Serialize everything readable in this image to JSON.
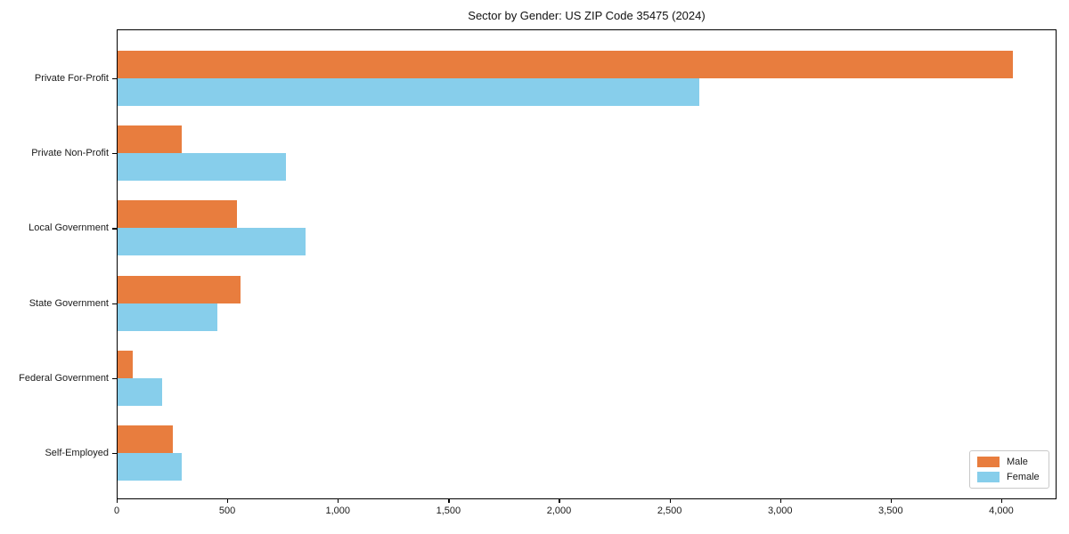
{
  "chart_data": {
    "type": "bar",
    "orientation": "horizontal",
    "title": "Sector by Gender: US ZIP Code 35475 (2024)",
    "categories": [
      "Private For-Profit",
      "Private Non-Profit",
      "Local Government",
      "State Government",
      "Federal Government",
      "Self-Employed"
    ],
    "series": [
      {
        "name": "Male",
        "color": "#e87d3e",
        "values": [
          4050,
          290,
          540,
          555,
          70,
          250
        ]
      },
      {
        "name": "Female",
        "color": "#87ceeb",
        "values": [
          2630,
          760,
          850,
          450,
          200,
          290
        ]
      }
    ],
    "xlabel": "",
    "ylabel": "",
    "xlim": [
      0,
      4250
    ],
    "xticks": [
      0,
      500,
      1000,
      1500,
      2000,
      2500,
      3000,
      3500,
      4000
    ],
    "xtick_labels": [
      "0",
      "500",
      "1,000",
      "1,500",
      "2,000",
      "2,500",
      "3,000",
      "3,500",
      "4,000"
    ],
    "grid": false,
    "legend": {
      "position": "lower right",
      "entries": [
        "Male",
        "Female"
      ]
    },
    "colors": {
      "male": "#e87d3e",
      "female": "#87ceeb",
      "spine": "#000000",
      "background": "#ffffff"
    }
  }
}
